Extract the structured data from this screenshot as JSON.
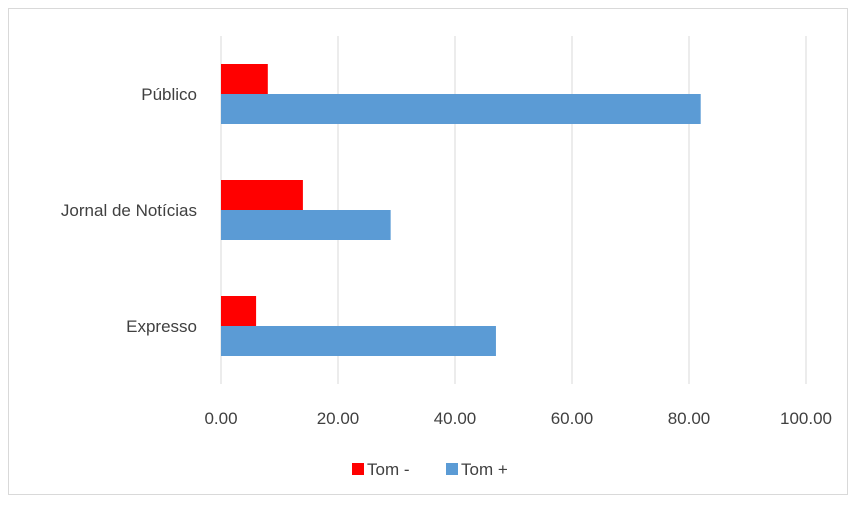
{
  "chart_data": {
    "type": "bar",
    "orientation": "horizontal",
    "categories": [
      "Público",
      "Jornal de Notícias",
      "Expresso"
    ],
    "series": [
      {
        "name": "Tom -",
        "color": "#ff0000",
        "values": [
          8,
          14,
          6
        ]
      },
      {
        "name": "Tom +",
        "color": "#5b9bd5",
        "values": [
          82,
          29,
          47
        ]
      }
    ],
    "xlim": [
      0,
      100
    ],
    "x_ticks": [
      "0.00",
      "20.00",
      "40.00",
      "60.00",
      "80.00",
      "100.00"
    ],
    "x_tick_values": [
      0,
      20,
      40,
      60,
      80,
      100
    ],
    "grid": "vertical",
    "legend": "bottom",
    "title": "",
    "xlabel": "",
    "ylabel": ""
  }
}
